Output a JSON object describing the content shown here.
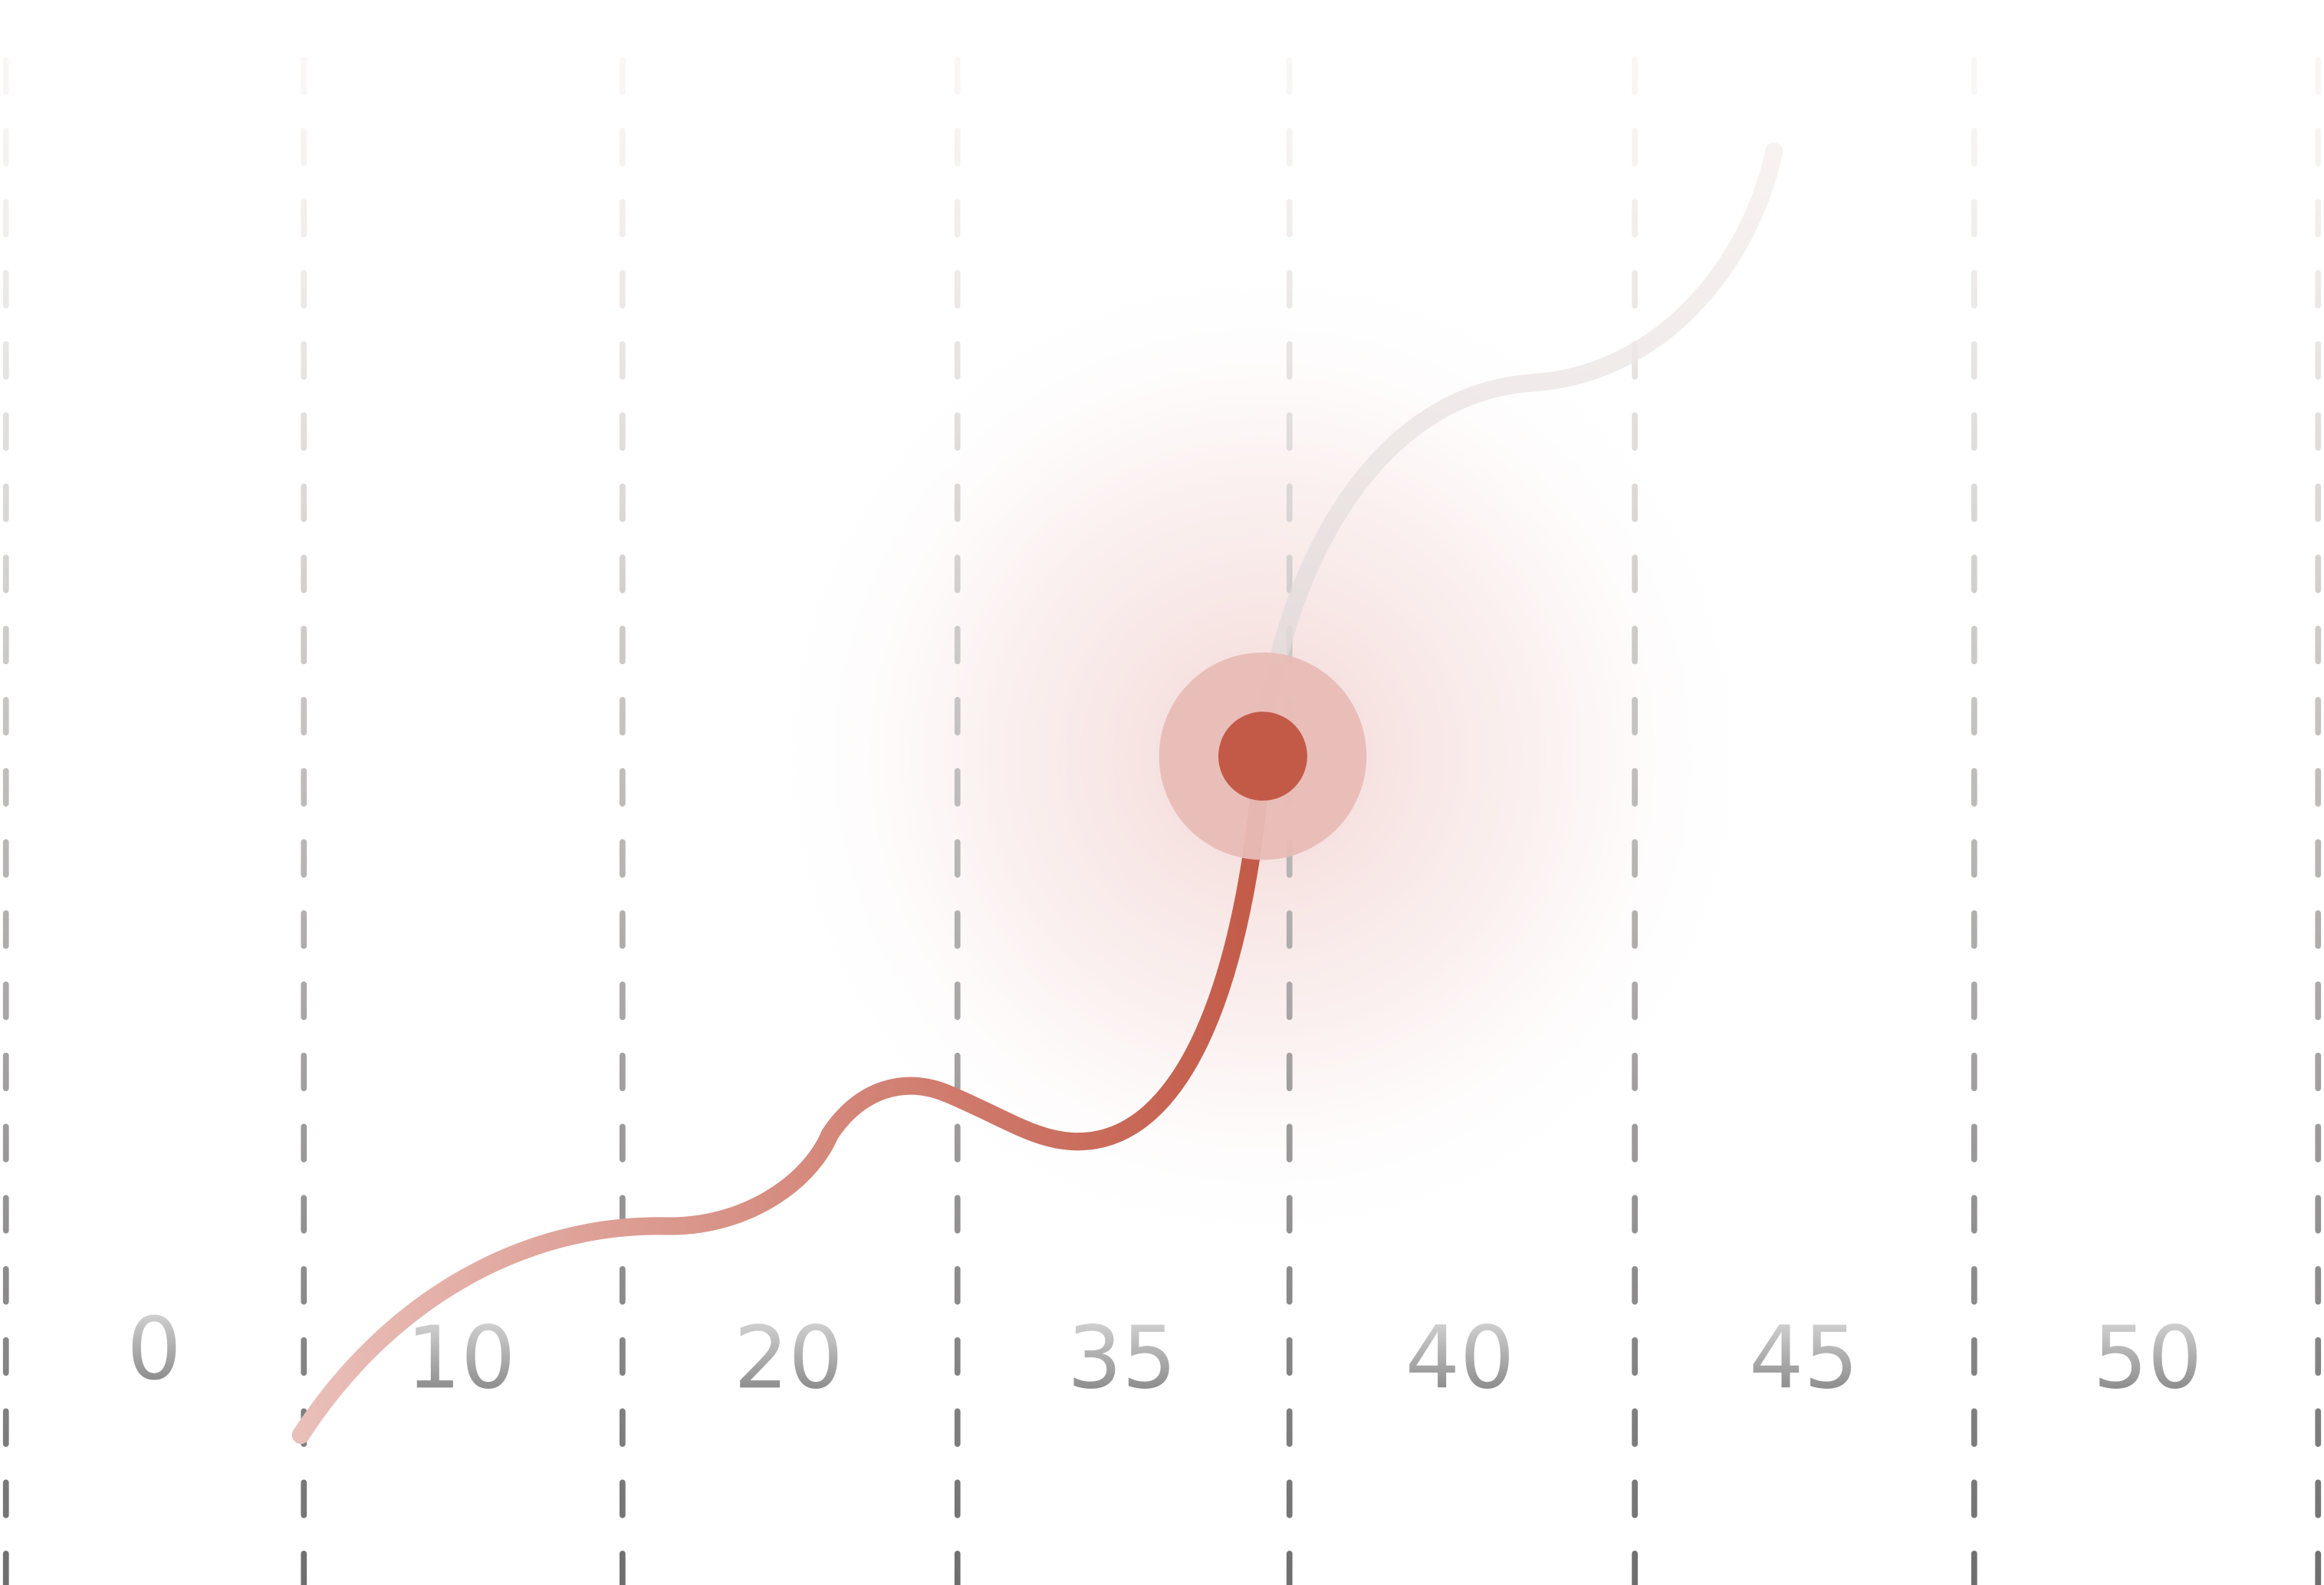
{
  "labels": [
    "0",
    "10",
    "20",
    "35",
    "40",
    "45",
    "50"
  ]
}
